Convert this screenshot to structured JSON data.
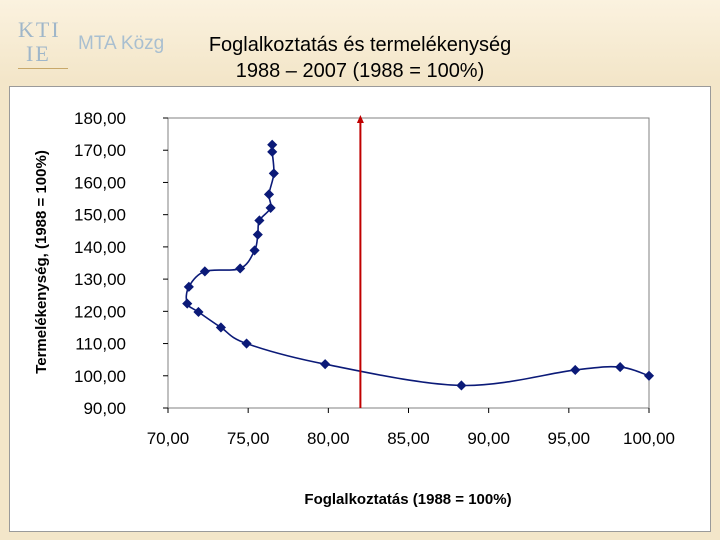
{
  "header": {
    "logo_text": "KTI IE",
    "institute_name": "MTA Közg",
    "title_line1": "Foglalkoztatás és termelékenység",
    "title_line2": "1988 – 2007 (1988 = 100%)"
  },
  "colors": {
    "background": "#f3e6c9",
    "series_marker": "#0b1a78",
    "series_line": "#0b1a78",
    "reference_line": "#c00000"
  },
  "chart_data": {
    "type": "scatter",
    "xlabel": "Foglalkoztatás (1988 = 100%)",
    "ylabel": "Termelékenység, (1988 = 100%)",
    "xlim": [
      70,
      100
    ],
    "ylim": [
      90,
      180
    ],
    "x_ticks": [
      "70,00",
      "75,00",
      "80,00",
      "85,00",
      "90,00",
      "95,00",
      "100,00"
    ],
    "y_ticks": [
      "90,00",
      "100,00",
      "110,00",
      "120,00",
      "130,00",
      "140,00",
      "150,00",
      "160,00",
      "170,00",
      "180,00"
    ],
    "grid": false,
    "legend": "none",
    "connected": true,
    "points": [
      [
        100.0,
        100.0
      ],
      [
        98.2,
        102.7
      ],
      [
        95.4,
        101.8
      ],
      [
        88.3,
        97.0
      ],
      [
        79.8,
        103.6
      ],
      [
        74.9,
        110.0
      ],
      [
        73.3,
        115.0
      ],
      [
        71.9,
        119.8
      ],
      [
        71.2,
        122.4
      ],
      [
        71.3,
        127.6
      ],
      [
        72.3,
        132.4
      ],
      [
        74.5,
        133.3
      ],
      [
        75.4,
        138.9
      ],
      [
        75.6,
        143.8
      ],
      [
        75.7,
        148.2
      ],
      [
        76.4,
        152.1
      ],
      [
        76.3,
        156.3
      ],
      [
        76.6,
        162.8
      ],
      [
        76.5,
        169.5
      ],
      [
        76.5,
        171.7
      ]
    ],
    "reference_line_x": 82.0
  }
}
